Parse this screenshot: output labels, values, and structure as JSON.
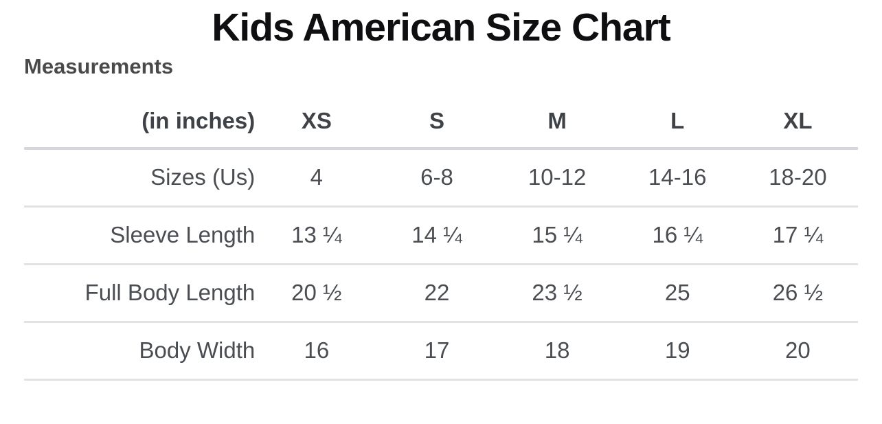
{
  "page": {
    "title": "Kids American Size Chart",
    "section_title": "Measurements"
  },
  "table": {
    "unit_label": "(in inches)",
    "columns": [
      "XS",
      "S",
      "M",
      "L",
      "XL"
    ],
    "rows": [
      {
        "label": "Sizes (Us)",
        "values": [
          "4",
          "6-8",
          "10-12",
          "14-16",
          "18-20"
        ]
      },
      {
        "label": "Sleeve Length",
        "values": [
          "13 ¼",
          "14 ¼",
          "15 ¼",
          "16 ¼",
          "17 ¼"
        ]
      },
      {
        "label": "Full Body Length",
        "values": [
          "20 ½",
          "22",
          "23 ½",
          "25",
          "26 ½"
        ]
      },
      {
        "label": "Body Width",
        "values": [
          "16",
          "17",
          "18",
          "19",
          "20"
        ]
      }
    ]
  },
  "colors": {
    "title_text": "#0f0f11",
    "section_title_text": "#4a4a4a",
    "header_text": "#3f4347",
    "body_text": "#4a4d52",
    "header_rule": "#d6d6da",
    "row_rule": "#e2e2e6",
    "background": "#ffffff"
  }
}
